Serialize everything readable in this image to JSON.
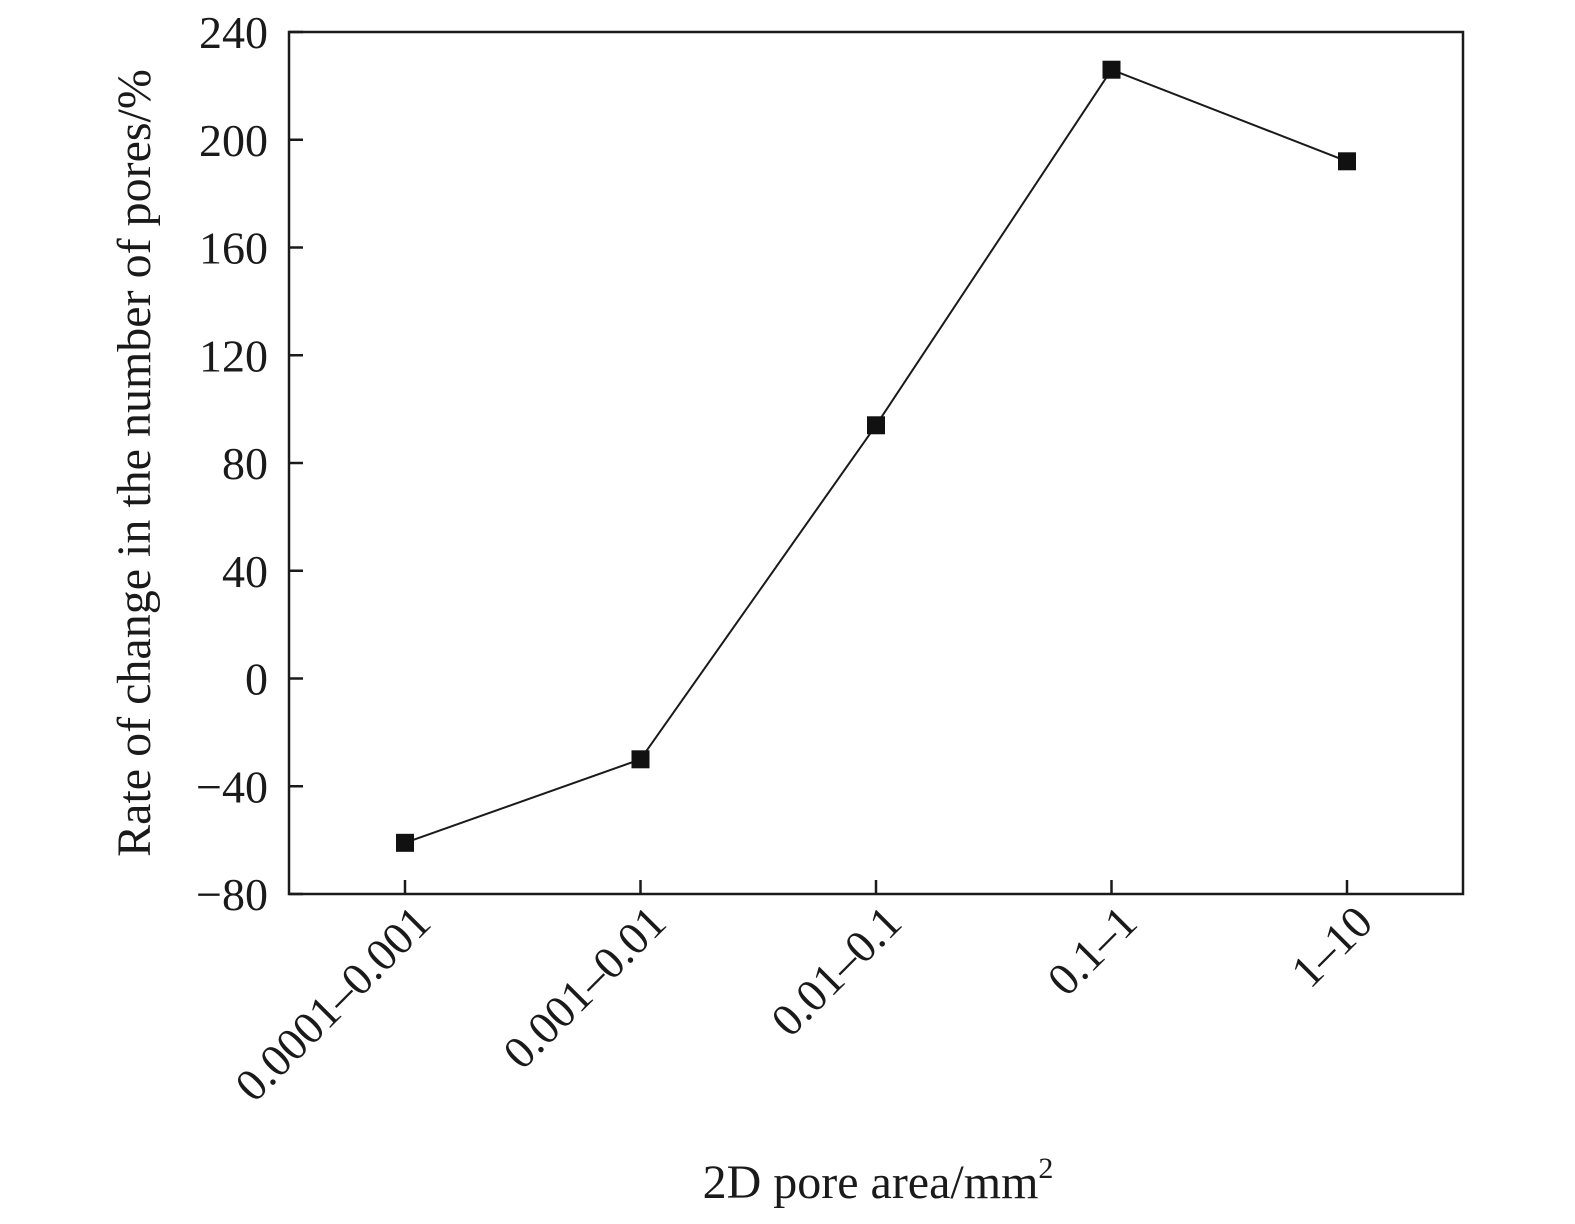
{
  "chart_data": {
    "type": "line",
    "categories": [
      "0.0001–0.001",
      "0.001–0.01",
      "0.01–0.1",
      "0.1–1",
      "1–10"
    ],
    "series": [
      {
        "values": [
          -61,
          -30,
          94,
          226,
          192
        ]
      }
    ],
    "xlabel": "2D pore area/mm",
    "xlabel_sup": "2",
    "ylabel": "Rate of change in the number of pores/%",
    "ylim": [
      -80,
      240
    ],
    "yticks": [
      240,
      200,
      160,
      120,
      80,
      40,
      0,
      -40,
      -80
    ],
    "ytick_labels": [
      "240",
      "200",
      "160",
      "120",
      "80",
      "40",
      "0",
      "−40",
      "−80"
    ],
    "grid": false,
    "marker": "square",
    "line_color": "#1a1a1a",
    "marker_color": "#111111"
  }
}
